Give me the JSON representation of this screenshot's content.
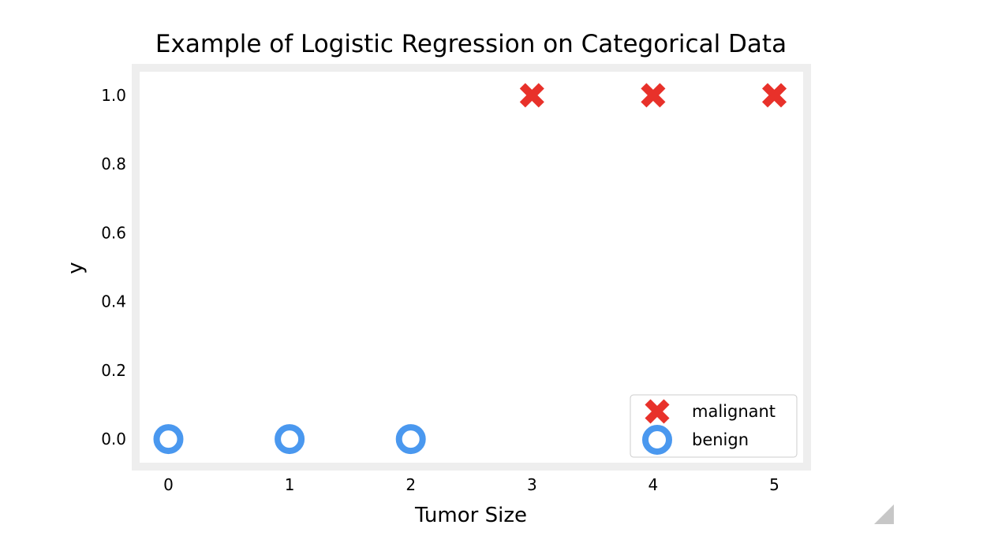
{
  "chart_data": {
    "type": "scatter",
    "title": "Example of Logistic Regression on Categorical Data",
    "xlabel": "Tumor Size",
    "ylabel": "y",
    "xlim": [
      -0.27,
      5.27
    ],
    "ylim": [
      -0.08,
      1.08
    ],
    "x_ticks": [
      "0",
      "1",
      "2",
      "3",
      "4",
      "5"
    ],
    "y_ticks": [
      "0.0",
      "0.2",
      "0.4",
      "0.6",
      "0.8",
      "1.0"
    ],
    "grid": false,
    "legend_position": "lower right",
    "series": [
      {
        "name": "malignant",
        "marker": "x",
        "color": "#e8312a",
        "points": [
          {
            "x": 3,
            "y": 1.0
          },
          {
            "x": 4,
            "y": 1.0
          },
          {
            "x": 5,
            "y": 1.0
          }
        ]
      },
      {
        "name": "benign",
        "marker": "o",
        "color": "#4a98ef",
        "points": [
          {
            "x": 0,
            "y": 0.0
          },
          {
            "x": 1,
            "y": 0.0
          },
          {
            "x": 2,
            "y": 0.0
          }
        ]
      }
    ]
  }
}
